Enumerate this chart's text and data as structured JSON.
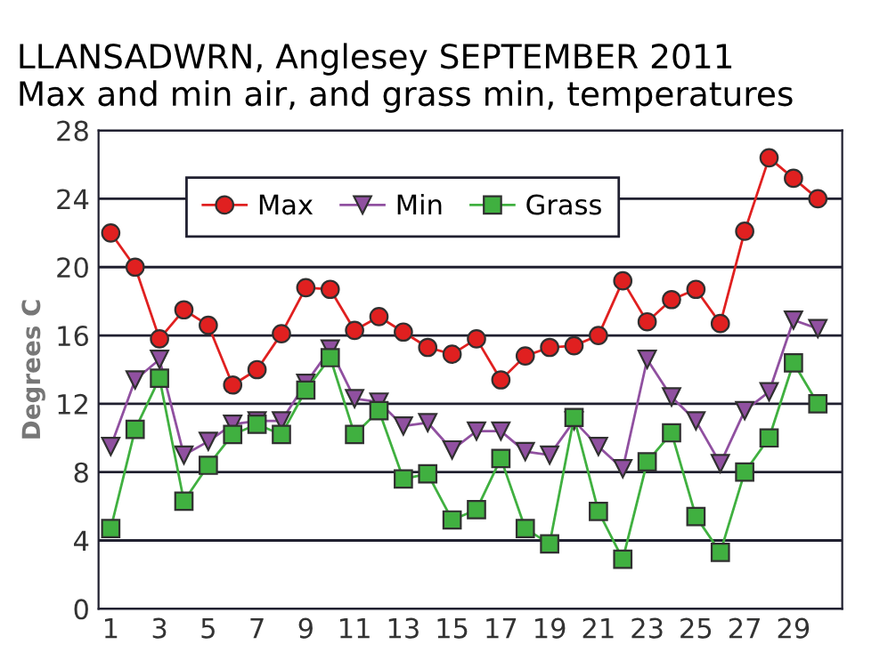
{
  "chart_data": {
    "type": "line",
    "title": "LLANSADWRN, Anglesey SEPTEMBER 2011\nMax and min air, and grass min, temperatures",
    "ylabel": "Degrees C",
    "x": [
      1,
      2,
      3,
      4,
      5,
      6,
      7,
      8,
      9,
      10,
      11,
      12,
      13,
      14,
      15,
      16,
      17,
      18,
      19,
      20,
      21,
      22,
      23,
      24,
      25,
      26,
      27,
      28,
      29,
      30
    ],
    "series": [
      {
        "name": "Max",
        "color": "#e02020",
        "marker": "circle",
        "values": [
          22,
          20,
          15.8,
          17.5,
          16.6,
          13.1,
          14,
          16.1,
          18.8,
          18.7,
          16.3,
          17.1,
          16.2,
          15.3,
          14.9,
          15.8,
          13.4,
          14.8,
          15.3,
          15.4,
          16,
          19.2,
          16.8,
          18.1,
          18.7,
          16.7,
          22.1,
          26.4,
          25.2,
          24
        ]
      },
      {
        "name": "Min",
        "color": "#9050a0",
        "marker": "triangle",
        "values": [
          9.5,
          13.4,
          14.6,
          9,
          9.8,
          10.8,
          11,
          11,
          13.2,
          15.2,
          12.3,
          12.1,
          10.7,
          10.9,
          9.3,
          10.4,
          10.4,
          9.2,
          9,
          11,
          9.5,
          8.2,
          14.6,
          12.4,
          11,
          8.5,
          11.6,
          12.7,
          16.9,
          16.4
        ]
      },
      {
        "name": "Grass",
        "color": "#40b040",
        "marker": "square",
        "values": [
          4.7,
          10.5,
          13.5,
          6.3,
          8.4,
          10.2,
          10.8,
          10.2,
          12.8,
          14.7,
          10.2,
          11.6,
          7.6,
          7.9,
          5.2,
          5.8,
          8.8,
          4.7,
          3.8,
          11.2,
          5.7,
          2.9,
          8.6,
          10.3,
          5.4,
          3.3,
          8,
          10,
          14.4,
          12
        ]
      }
    ],
    "xlim": [
      0.5,
      31
    ],
    "xticks": [
      1,
      3,
      5,
      7,
      9,
      11,
      13,
      15,
      17,
      19,
      21,
      23,
      25,
      27,
      29
    ],
    "ylim": [
      0,
      28
    ],
    "yticks": [
      0,
      4,
      8,
      12,
      16,
      20,
      24,
      28
    ],
    "grid": "y",
    "legend": "top left",
    "line_style": "solid"
  }
}
